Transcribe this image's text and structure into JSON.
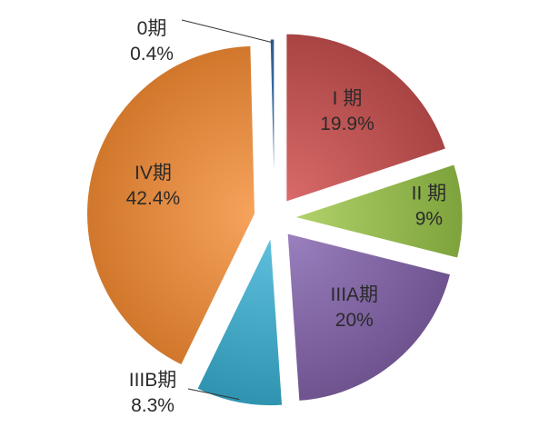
{
  "chart_data": {
    "type": "pie",
    "title": "",
    "slices": [
      {
        "name": "I 期",
        "label": "I 期",
        "percent_text": "19.9%",
        "value": 19.9,
        "color": "#d96b6a",
        "color_dark": "#a84443"
      },
      {
        "name": "II 期",
        "label": "II 期",
        "percent_text": "9%",
        "value": 9.0,
        "color": "#b2d26b",
        "color_dark": "#7ea33c"
      },
      {
        "name": "IIIA期",
        "label": "IIIA期",
        "percent_text": "20%",
        "value": 20.0,
        "color": "#9b80bf",
        "color_dark": "#6e538f"
      },
      {
        "name": "IIIB期",
        "label": "IIIB期",
        "percent_text": "8.3%",
        "value": 8.3,
        "color": "#5fc0dc",
        "color_dark": "#2f93b0"
      },
      {
        "name": "IV期",
        "label": "IV期",
        "percent_text": "42.4%",
        "value": 42.4,
        "color": "#f7a35c",
        "color_dark": "#d0772c"
      },
      {
        "name": "0期",
        "label": "0期",
        "percent_text": "0.4%",
        "value": 0.4,
        "color": "#4f81bd",
        "color_dark": "#2f5c91"
      }
    ],
    "exploded": true,
    "legend": "none",
    "labels": "inside-and-callout"
  }
}
